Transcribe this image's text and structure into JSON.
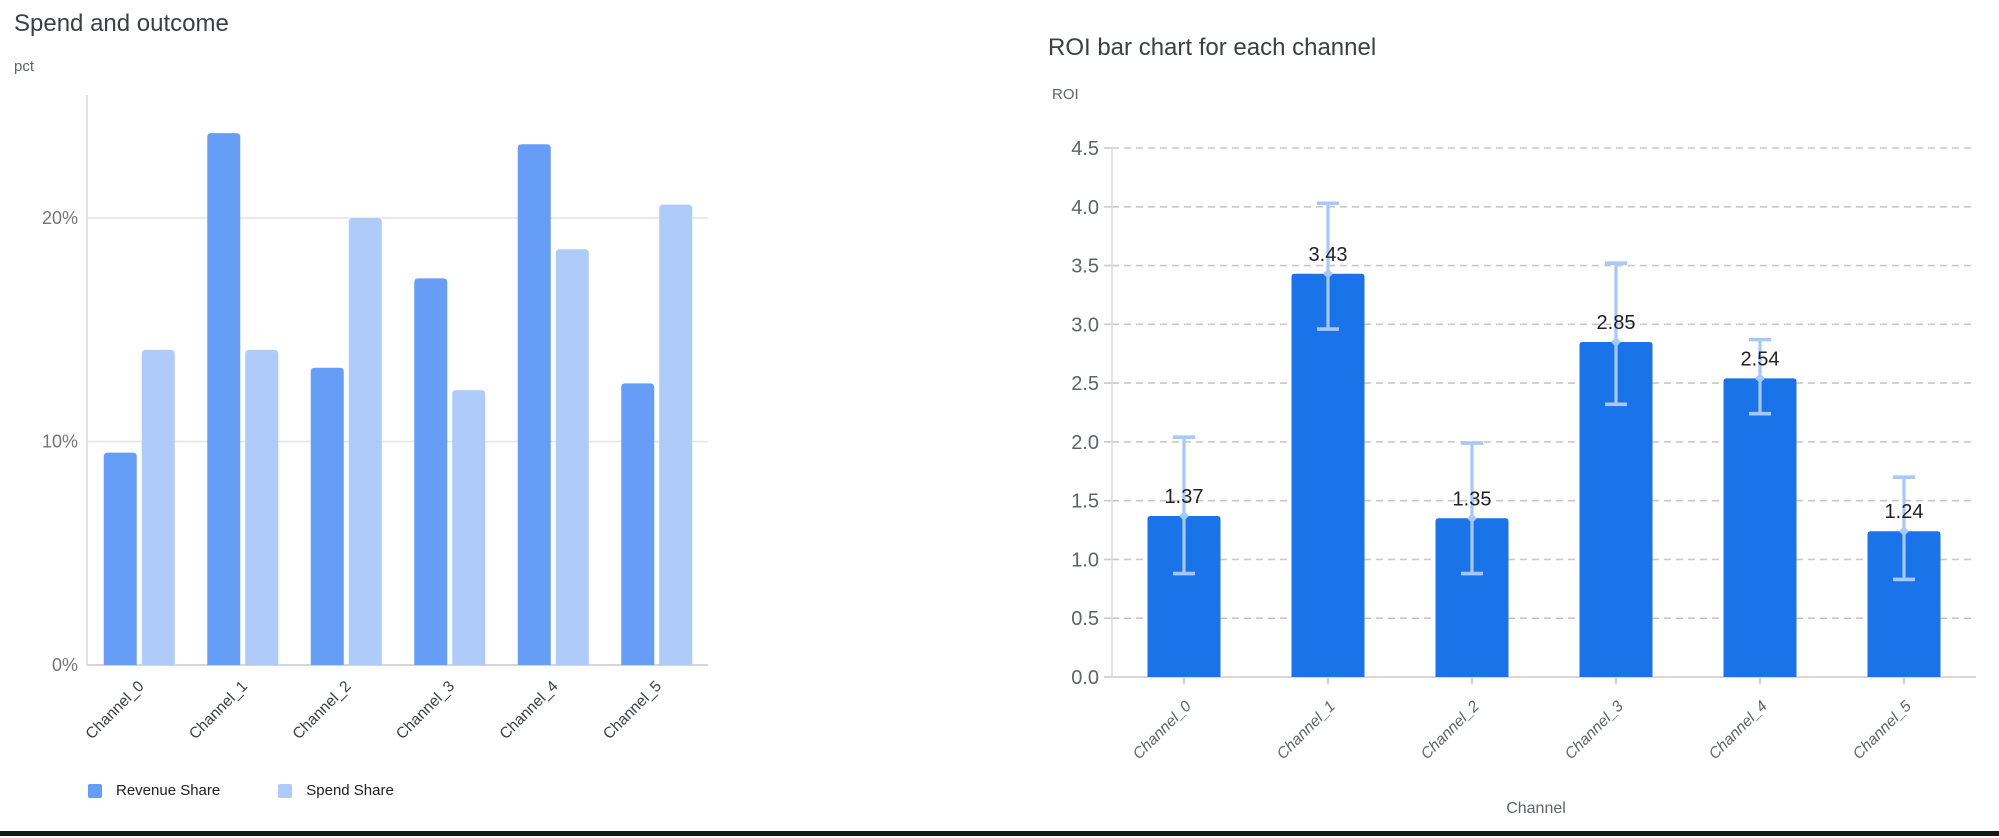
{
  "page": {
    "background": "#ffffff",
    "divider_color": "#15181b"
  },
  "chart_data": [
    {
      "type": "bar",
      "title": "Spend and outcome",
      "ylabel": "pct",
      "xlabel": "",
      "categories": [
        "Channel_0",
        "Channel_1",
        "Channel_2",
        "Channel_3",
        "Channel_4",
        "Channel_5"
      ],
      "series": [
        {
          "name": "Revenue Share",
          "color": "#669df6",
          "values": [
            9.5,
            23.8,
            13.3,
            17.3,
            23.3,
            12.6
          ]
        },
        {
          "name": "Spend Share",
          "color": "#aecbfa",
          "values": [
            14.1,
            14.1,
            20.0,
            12.3,
            18.6,
            20.6
          ]
        }
      ],
      "y_ticks": [
        "0%",
        "10%",
        "20%"
      ],
      "ylim": [
        0,
        25.5
      ],
      "grid": "horizontal-solid",
      "legend_position": "bottom-left"
    },
    {
      "type": "bar",
      "title": "ROI bar chart for each channel",
      "ylabel": "ROI",
      "xlabel": "Channel",
      "categories": [
        "Channel_0",
        "Channel_1",
        "Channel_2",
        "Channel_3",
        "Channel_4",
        "Channel_5"
      ],
      "values": [
        1.37,
        3.43,
        1.35,
        2.85,
        2.54,
        1.24
      ],
      "value_labels": [
        "1.37",
        "3.43",
        "1.35",
        "2.85",
        "2.54",
        "1.24"
      ],
      "error_low": [
        0.88,
        2.96,
        0.88,
        2.32,
        2.24,
        0.83
      ],
      "error_high": [
        2.04,
        4.03,
        1.99,
        3.52,
        2.87,
        1.7
      ],
      "bar_color": "#1a73e8",
      "error_bar_color": "#a8c7fa",
      "y_ticks": [
        "0.0",
        "0.5",
        "1.0",
        "1.5",
        "2.0",
        "2.5",
        "3.0",
        "3.5",
        "4.0",
        "4.5"
      ],
      "ylim": [
        0,
        4.5
      ],
      "grid": "horizontal-dashed",
      "legend_position": "none"
    }
  ]
}
